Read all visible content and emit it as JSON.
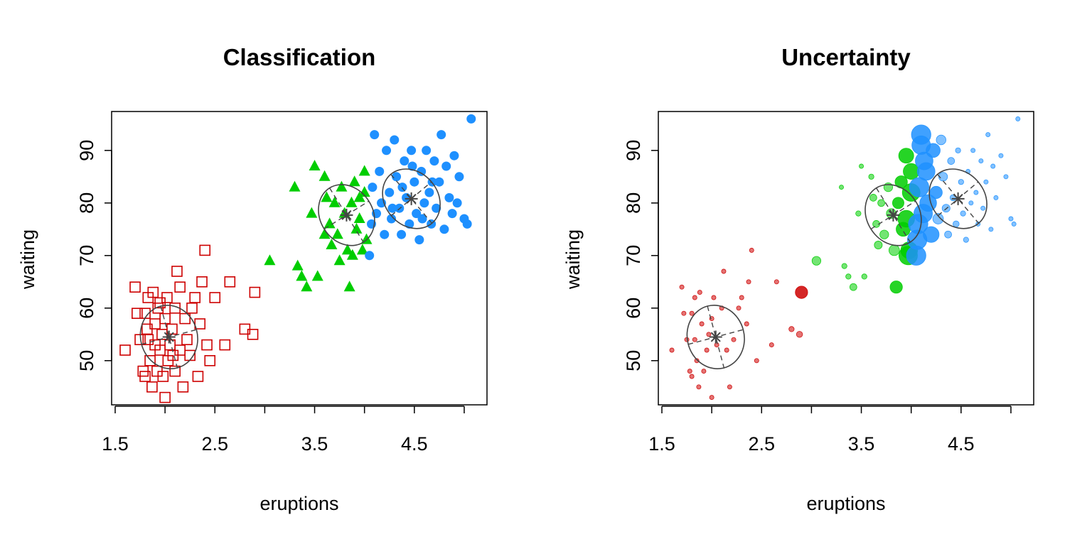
{
  "chart_data": [
    {
      "type": "scatter",
      "title": "Classification",
      "xlabel": "eruptions",
      "ylabel": "waiting",
      "xlim": [
        1.5,
        5.2
      ],
      "ylim": [
        42,
        97
      ],
      "xticks": [
        "1.5",
        "2.5",
        "3.5",
        "4.5"
      ],
      "yticks": [
        "50",
        "60",
        "70",
        "80",
        "90"
      ],
      "grid": false,
      "legend": "none",
      "series": [
        {
          "marker": "open-square",
          "color": "#CD0000",
          "points": [
            [
              1.6,
              52
            ],
            [
              1.7,
              64
            ],
            [
              1.72,
              59
            ],
            [
              1.75,
              54
            ],
            [
              1.78,
              48
            ],
            [
              1.8,
              47
            ],
            [
              1.8,
              59
            ],
            [
              1.83,
              62
            ],
            [
              1.83,
              54
            ],
            [
              1.85,
              50
            ],
            [
              1.87,
              45
            ],
            [
              1.88,
              63
            ],
            [
              1.9,
              57
            ],
            [
              1.9,
              53
            ],
            [
              1.92,
              48
            ],
            [
              1.93,
              60
            ],
            [
              1.95,
              52
            ],
            [
              1.97,
              55
            ],
            [
              1.98,
              47
            ],
            [
              2.0,
              58
            ],
            [
              2.0,
              43
            ],
            [
              2.02,
              62
            ],
            [
              2.03,
              50
            ],
            [
              2.05,
              53
            ],
            [
              2.07,
              56
            ],
            [
              2.1,
              60
            ],
            [
              2.1,
              48
            ],
            [
              2.12,
              67
            ],
            [
              2.15,
              52
            ],
            [
              2.18,
              45
            ],
            [
              2.2,
              58
            ],
            [
              2.22,
              54
            ],
            [
              2.25,
              51
            ],
            [
              2.27,
              60
            ],
            [
              2.3,
              62
            ],
            [
              2.33,
              47
            ],
            [
              2.35,
              57
            ],
            [
              2.37,
              65
            ],
            [
              2.4,
              71
            ],
            [
              2.42,
              53
            ],
            [
              2.45,
              50
            ],
            [
              2.5,
              62
            ],
            [
              2.6,
              53
            ],
            [
              2.65,
              65
            ],
            [
              2.8,
              56
            ],
            [
              2.88,
              55
            ],
            [
              2.9,
              63
            ],
            [
              1.82,
              56
            ],
            [
              1.95,
              61
            ],
            [
              2.08,
              51
            ],
            [
              2.15,
              64
            ]
          ]
        },
        {
          "marker": "filled-triangle",
          "color": "#00CD00",
          "points": [
            [
              3.05,
              69
            ],
            [
              3.3,
              83
            ],
            [
              3.33,
              68
            ],
            [
              3.37,
              66
            ],
            [
              3.42,
              64
            ],
            [
              3.47,
              78
            ],
            [
              3.5,
              87
            ],
            [
              3.53,
              66
            ],
            [
              3.6,
              85
            ],
            [
              3.62,
              81
            ],
            [
              3.65,
              76
            ],
            [
              3.67,
              72
            ],
            [
              3.7,
              80
            ],
            [
              3.73,
              74
            ],
            [
              3.77,
              83
            ],
            [
              3.8,
              78
            ],
            [
              3.83,
              71
            ],
            [
              3.85,
              64
            ],
            [
              3.87,
              80
            ],
            [
              3.9,
              84
            ],
            [
              3.92,
              75
            ],
            [
              3.95,
              77
            ],
            [
              3.98,
              71
            ],
            [
              4.0,
              86
            ],
            [
              4.0,
              82
            ],
            [
              3.6,
              74
            ],
            [
              3.75,
              69
            ],
            [
              3.88,
              70
            ],
            [
              3.95,
              81
            ],
            [
              4.02,
              73
            ]
          ]
        },
        {
          "marker": "filled-circle",
          "color": "#1E90FF",
          "points": [
            [
              4.05,
              70
            ],
            [
              4.07,
              76
            ],
            [
              4.08,
              83
            ],
            [
              4.1,
              93
            ],
            [
              4.12,
              78
            ],
            [
              4.15,
              86
            ],
            [
              4.17,
              80
            ],
            [
              4.2,
              74
            ],
            [
              4.22,
              90
            ],
            [
              4.25,
              82
            ],
            [
              4.27,
              77
            ],
            [
              4.3,
              92
            ],
            [
              4.32,
              85
            ],
            [
              4.35,
              79
            ],
            [
              4.37,
              74
            ],
            [
              4.4,
              88
            ],
            [
              4.42,
              81
            ],
            [
              4.45,
              76
            ],
            [
              4.47,
              90
            ],
            [
              4.5,
              84
            ],
            [
              4.52,
              78
            ],
            [
              4.55,
              73
            ],
            [
              4.57,
              86
            ],
            [
              4.6,
              80
            ],
            [
              4.62,
              90
            ],
            [
              4.65,
              82
            ],
            [
              4.67,
              76
            ],
            [
              4.7,
              88
            ],
            [
              4.72,
              79
            ],
            [
              4.75,
              84
            ],
            [
              4.77,
              93
            ],
            [
              4.8,
              75
            ],
            [
              4.82,
              87
            ],
            [
              4.85,
              81
            ],
            [
              4.88,
              78
            ],
            [
              4.9,
              89
            ],
            [
              4.93,
              80
            ],
            [
              4.95,
              85
            ],
            [
              5.0,
              77
            ],
            [
              5.03,
              76
            ],
            [
              5.07,
              96
            ],
            [
              4.28,
              79
            ],
            [
              4.38,
              83
            ],
            [
              4.48,
              87
            ],
            [
              4.58,
              77
            ],
            [
              4.68,
              84
            ]
          ]
        }
      ],
      "components": [
        {
          "mean": [
            2.04,
            54.5
          ]
        },
        {
          "mean": [
            3.82,
            77.7
          ]
        },
        {
          "mean": [
            4.47,
            80.8
          ]
        }
      ]
    },
    {
      "type": "scatter",
      "title": "Uncertainty",
      "xlabel": "eruptions",
      "ylabel": "waiting",
      "xlim": [
        1.5,
        5.2
      ],
      "ylim": [
        42,
        97
      ],
      "xticks": [
        "1.5",
        "2.5",
        "3.5",
        "4.5"
      ],
      "yticks": [
        "50",
        "60",
        "70",
        "80",
        "90"
      ],
      "grid": false,
      "legend": "none",
      "series": [
        {
          "marker": "circle-size-by-uncertainty",
          "color": "#CD0000",
          "points": [
            [
              1.6,
              52,
              0.15
            ],
            [
              1.7,
              64,
              0.15
            ],
            [
              1.72,
              59,
              0.15
            ],
            [
              1.75,
              54,
              0.15
            ],
            [
              1.78,
              48,
              0.15
            ],
            [
              1.8,
              47,
              0.15
            ],
            [
              1.8,
              59,
              0.15
            ],
            [
              1.83,
              62,
              0.15
            ],
            [
              1.83,
              54,
              0.15
            ],
            [
              1.85,
              50,
              0.15
            ],
            [
              1.87,
              45,
              0.15
            ],
            [
              1.88,
              63,
              0.15
            ],
            [
              1.9,
              57,
              0.15
            ],
            [
              1.92,
              48,
              0.15
            ],
            [
              1.95,
              52,
              0.15
            ],
            [
              1.97,
              55,
              0.15
            ],
            [
              2.0,
              58,
              0.15
            ],
            [
              2.0,
              43,
              0.15
            ],
            [
              2.02,
              62,
              0.15
            ],
            [
              2.05,
              53,
              0.15
            ],
            [
              2.1,
              60,
              0.15
            ],
            [
              2.12,
              67,
              0.15
            ],
            [
              2.15,
              52,
              0.15
            ],
            [
              2.18,
              45,
              0.15
            ],
            [
              2.22,
              54,
              0.15
            ],
            [
              2.27,
              60,
              0.15
            ],
            [
              2.3,
              62,
              0.15
            ],
            [
              2.35,
              57,
              0.15
            ],
            [
              2.37,
              65,
              0.15
            ],
            [
              2.4,
              71,
              0.15
            ],
            [
              2.45,
              50,
              0.15
            ],
            [
              2.6,
              53,
              0.15
            ],
            [
              2.65,
              65,
              0.15
            ],
            [
              2.8,
              56,
              0.2
            ],
            [
              2.88,
              55,
              0.25
            ],
            [
              2.9,
              63,
              0.6
            ]
          ]
        },
        {
          "marker": "circle-size-by-uncertainty",
          "color": "#00CD00",
          "points": [
            [
              3.05,
              69,
              0.4
            ],
            [
              3.3,
              83,
              0.15
            ],
            [
              3.33,
              68,
              0.2
            ],
            [
              3.37,
              66,
              0.2
            ],
            [
              3.42,
              64,
              0.3
            ],
            [
              3.47,
              78,
              0.2
            ],
            [
              3.5,
              87,
              0.15
            ],
            [
              3.53,
              66,
              0.2
            ],
            [
              3.6,
              85,
              0.2
            ],
            [
              3.62,
              81,
              0.3
            ],
            [
              3.65,
              76,
              0.3
            ],
            [
              3.67,
              72,
              0.35
            ],
            [
              3.7,
              80,
              0.3
            ],
            [
              3.73,
              74,
              0.4
            ],
            [
              3.77,
              83,
              0.4
            ],
            [
              3.8,
              78,
              0.45
            ],
            [
              3.83,
              71,
              0.5
            ],
            [
              3.85,
              64,
              0.6
            ],
            [
              3.87,
              80,
              0.55
            ],
            [
              3.9,
              84,
              0.6
            ],
            [
              3.92,
              75,
              0.7
            ],
            [
              3.95,
              77,
              0.85
            ],
            [
              3.98,
              71,
              0.85
            ],
            [
              4.0,
              86,
              0.8
            ],
            [
              4.0,
              82,
              0.9
            ],
            [
              3.95,
              89,
              0.75
            ],
            [
              3.97,
              70,
              0.95
            ]
          ]
        },
        {
          "marker": "circle-size-by-uncertainty",
          "color": "#1E90FF",
          "points": [
            [
              4.05,
              70,
              1.0
            ],
            [
              4.07,
              76,
              1.0
            ],
            [
              4.08,
              83,
              1.0
            ],
            [
              4.1,
              93,
              1.0
            ],
            [
              4.12,
              78,
              0.95
            ],
            [
              4.15,
              86,
              0.9
            ],
            [
              4.17,
              80,
              0.85
            ],
            [
              4.2,
              74,
              0.8
            ],
            [
              4.22,
              90,
              0.7
            ],
            [
              4.25,
              82,
              0.6
            ],
            [
              4.27,
              77,
              0.5
            ],
            [
              4.3,
              92,
              0.45
            ],
            [
              4.32,
              85,
              0.4
            ],
            [
              4.35,
              79,
              0.35
            ],
            [
              4.37,
              74,
              0.3
            ],
            [
              4.4,
              88,
              0.3
            ],
            [
              4.42,
              81,
              0.25
            ],
            [
              4.45,
              76,
              0.25
            ],
            [
              4.47,
              90,
              0.2
            ],
            [
              4.5,
              84,
              0.2
            ],
            [
              4.52,
              78,
              0.2
            ],
            [
              4.55,
              73,
              0.2
            ],
            [
              4.57,
              86,
              0.15
            ],
            [
              4.6,
              80,
              0.15
            ],
            [
              4.62,
              90,
              0.15
            ],
            [
              4.65,
              82,
              0.15
            ],
            [
              4.67,
              76,
              0.15
            ],
            [
              4.7,
              88,
              0.15
            ],
            [
              4.72,
              79,
              0.15
            ],
            [
              4.75,
              84,
              0.15
            ],
            [
              4.77,
              93,
              0.15
            ],
            [
              4.8,
              75,
              0.15
            ],
            [
              4.82,
              87,
              0.15
            ],
            [
              4.85,
              81,
              0.15
            ],
            [
              4.9,
              89,
              0.15
            ],
            [
              4.95,
              85,
              0.15
            ],
            [
              5.0,
              77,
              0.15
            ],
            [
              5.03,
              76,
              0.15
            ],
            [
              5.07,
              96,
              0.15
            ],
            [
              4.1,
              91,
              0.95
            ],
            [
              4.13,
              88,
              0.9
            ],
            [
              4.06,
              73,
              1.0
            ]
          ]
        }
      ],
      "components": [
        {
          "mean": [
            2.04,
            54.5
          ]
        },
        {
          "mean": [
            3.82,
            77.7
          ]
        },
        {
          "mean": [
            4.47,
            80.8
          ]
        }
      ]
    }
  ]
}
